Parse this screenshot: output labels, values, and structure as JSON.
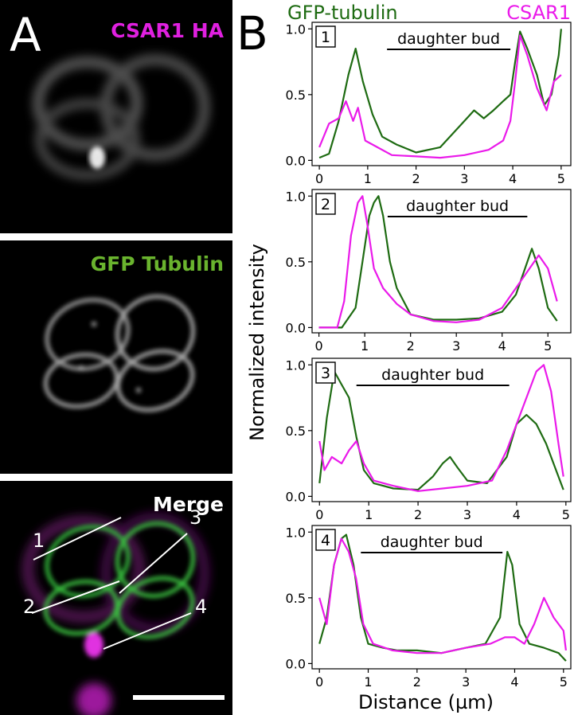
{
  "panel_a": {
    "letter": "A",
    "images": [
      {
        "label": "CSAR1 HA",
        "label_color": "#e020e0"
      },
      {
        "label": "GFP Tubulin",
        "label_color": "#6ab42e"
      },
      {
        "label": "Merge",
        "label_color": "#ffffff"
      }
    ],
    "line_numbers": [
      "1",
      "2",
      "3",
      "4"
    ]
  },
  "panel_b": {
    "letter": "B",
    "legend": {
      "green": "GFP-tubulin",
      "magenta": "CSAR1"
    },
    "colors": {
      "green": "#1e6b12",
      "magenta": "#ea1aea"
    },
    "ylabel": "Normalized intensity",
    "xlabel": "Distance (µm)",
    "x_ticks": [
      "0",
      "1",
      "2",
      "3",
      "4",
      "5"
    ],
    "y_ticks": [
      "0.0",
      "0.5",
      "1.0"
    ],
    "bar_label": "daughter bud"
  },
  "chart_data": [
    {
      "type": "line",
      "panel": "1",
      "bar_label": "daughter bud",
      "bar_range": [
        1.4,
        3.95
      ],
      "xlim": [
        -0.15,
        5.2
      ],
      "ylim": [
        -0.04,
        1.05
      ],
      "series": [
        {
          "name": "GFP-tubulin",
          "x": [
            0,
            0.2,
            0.4,
            0.6,
            0.75,
            0.9,
            1.1,
            1.3,
            1.6,
            2.0,
            2.5,
            2.8,
            3.0,
            3.2,
            3.4,
            3.6,
            3.8,
            3.95,
            4.05,
            4.15,
            4.3,
            4.5,
            4.65,
            4.8,
            4.95,
            5.0
          ],
          "y": [
            0.02,
            0.05,
            0.3,
            0.65,
            0.85,
            0.6,
            0.35,
            0.18,
            0.12,
            0.06,
            0.1,
            0.22,
            0.3,
            0.38,
            0.32,
            0.38,
            0.45,
            0.5,
            0.75,
            0.98,
            0.85,
            0.65,
            0.42,
            0.5,
            0.8,
            1.0
          ]
        },
        {
          "name": "CSAR1",
          "x": [
            0,
            0.2,
            0.4,
            0.55,
            0.7,
            0.8,
            0.95,
            1.2,
            1.5,
            2.0,
            2.5,
            3.0,
            3.5,
            3.8,
            3.95,
            4.05,
            4.15,
            4.3,
            4.5,
            4.7,
            4.85,
            5.0
          ],
          "y": [
            0.1,
            0.28,
            0.32,
            0.45,
            0.3,
            0.4,
            0.15,
            0.1,
            0.04,
            0.03,
            0.02,
            0.04,
            0.08,
            0.15,
            0.3,
            0.6,
            0.95,
            0.8,
            0.55,
            0.38,
            0.6,
            0.65
          ]
        }
      ]
    },
    {
      "type": "line",
      "panel": "2",
      "bar_label": "daughter bud",
      "bar_range": [
        1.5,
        4.55
      ],
      "xlim": [
        -0.15,
        5.5
      ],
      "ylim": [
        -0.04,
        1.05
      ],
      "series": [
        {
          "name": "GFP-tubulin",
          "x": [
            0,
            0.5,
            0.8,
            0.95,
            1.1,
            1.2,
            1.3,
            1.4,
            1.55,
            1.7,
            2.0,
            2.5,
            3.0,
            3.5,
            4.0,
            4.3,
            4.5,
            4.65,
            4.8,
            5.0,
            5.2
          ],
          "y": [
            0.0,
            0.0,
            0.15,
            0.5,
            0.85,
            0.95,
            1.0,
            0.85,
            0.5,
            0.3,
            0.1,
            0.06,
            0.06,
            0.07,
            0.12,
            0.25,
            0.45,
            0.6,
            0.45,
            0.15,
            0.05
          ]
        },
        {
          "name": "CSAR1",
          "x": [
            0,
            0.4,
            0.55,
            0.7,
            0.85,
            0.95,
            1.05,
            1.2,
            1.4,
            1.7,
            2.0,
            2.5,
            3.0,
            3.5,
            4.0,
            4.3,
            4.6,
            4.8,
            5.0,
            5.2
          ],
          "y": [
            0.0,
            0.0,
            0.2,
            0.7,
            0.95,
            1.0,
            0.8,
            0.45,
            0.3,
            0.18,
            0.1,
            0.05,
            0.04,
            0.06,
            0.15,
            0.3,
            0.45,
            0.55,
            0.45,
            0.2
          ]
        }
      ]
    },
    {
      "type": "line",
      "panel": "3",
      "bar_label": "daughter bud",
      "bar_range": [
        0.75,
        3.85
      ],
      "xlim": [
        -0.15,
        5.1
      ],
      "ylim": [
        -0.04,
        1.05
      ],
      "series": [
        {
          "name": "GFP-tubulin",
          "x": [
            0,
            0.15,
            0.3,
            0.45,
            0.6,
            0.75,
            0.9,
            1.1,
            1.5,
            2.0,
            2.3,
            2.5,
            2.65,
            2.8,
            3.0,
            3.4,
            3.8,
            4.0,
            4.2,
            4.4,
            4.6,
            4.8,
            4.95
          ],
          "y": [
            0.1,
            0.6,
            0.95,
            0.85,
            0.75,
            0.45,
            0.2,
            0.1,
            0.06,
            0.05,
            0.15,
            0.25,
            0.3,
            0.22,
            0.12,
            0.1,
            0.3,
            0.55,
            0.62,
            0.55,
            0.4,
            0.2,
            0.05
          ]
        },
        {
          "name": "CSAR1",
          "x": [
            0,
            0.1,
            0.25,
            0.45,
            0.6,
            0.75,
            0.9,
            1.1,
            1.5,
            2.0,
            2.5,
            3.0,
            3.5,
            3.8,
            4.0,
            4.2,
            4.4,
            4.55,
            4.7,
            4.85,
            4.95
          ],
          "y": [
            0.42,
            0.2,
            0.3,
            0.25,
            0.35,
            0.42,
            0.25,
            0.12,
            0.08,
            0.04,
            0.06,
            0.08,
            0.12,
            0.35,
            0.55,
            0.75,
            0.95,
            1.0,
            0.8,
            0.4,
            0.15
          ]
        }
      ]
    },
    {
      "type": "line",
      "panel": "4",
      "bar_label": "daughter bud",
      "bar_range": [
        0.85,
        3.75
      ],
      "xlim": [
        -0.15,
        5.15
      ],
      "ylim": [
        -0.04,
        1.05
      ],
      "series": [
        {
          "name": "GFP-tubulin",
          "x": [
            0,
            0.15,
            0.3,
            0.45,
            0.55,
            0.7,
            0.85,
            1.0,
            1.3,
            1.6,
            2.0,
            2.5,
            3.0,
            3.4,
            3.7,
            3.85,
            3.95,
            4.1,
            4.3,
            4.6,
            4.9,
            5.05
          ],
          "y": [
            0.15,
            0.35,
            0.75,
            0.95,
            0.98,
            0.75,
            0.35,
            0.15,
            0.12,
            0.1,
            0.1,
            0.08,
            0.12,
            0.15,
            0.35,
            0.85,
            0.75,
            0.3,
            0.15,
            0.12,
            0.08,
            0.02
          ]
        },
        {
          "name": "CSAR1",
          "x": [
            0,
            0.15,
            0.3,
            0.45,
            0.6,
            0.75,
            0.9,
            1.1,
            1.5,
            2.0,
            2.5,
            3.0,
            3.5,
            3.8,
            4.0,
            4.2,
            4.4,
            4.6,
            4.8,
            5.0,
            5.05
          ],
          "y": [
            0.5,
            0.3,
            0.75,
            0.95,
            0.85,
            0.65,
            0.3,
            0.15,
            0.1,
            0.08,
            0.08,
            0.12,
            0.15,
            0.2,
            0.2,
            0.15,
            0.3,
            0.5,
            0.35,
            0.25,
            0.1
          ]
        }
      ]
    }
  ]
}
